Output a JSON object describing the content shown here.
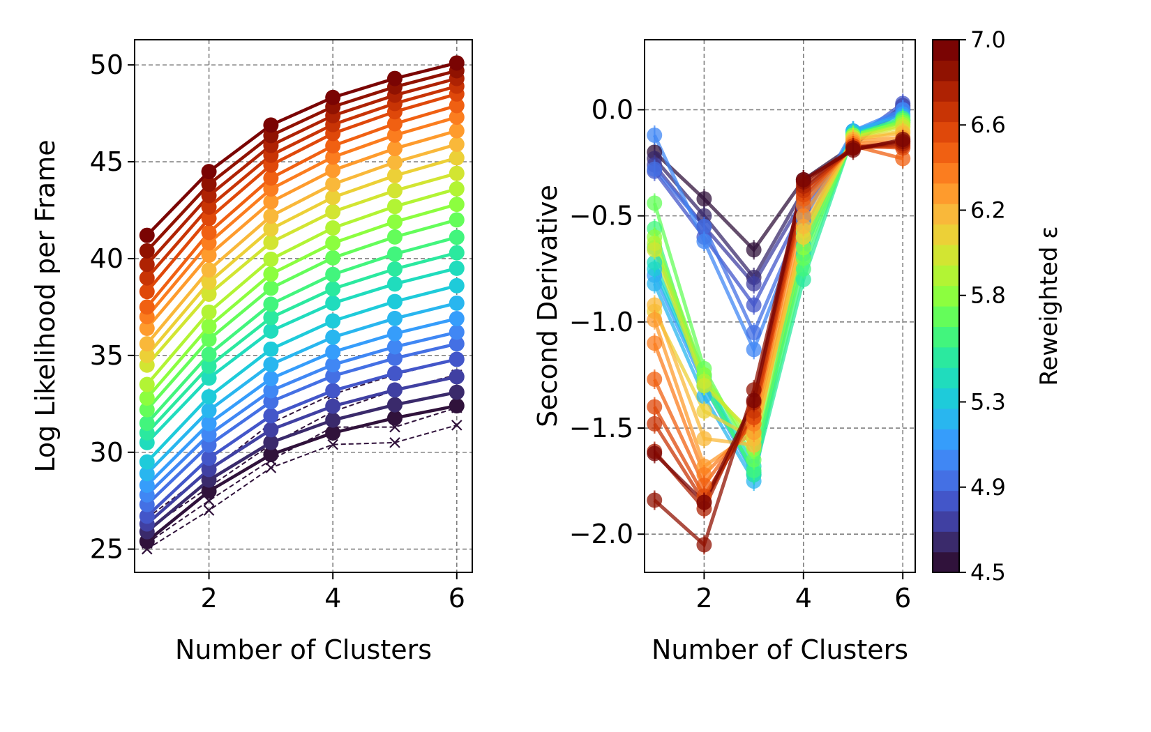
{
  "chart_data": [
    {
      "type": "line",
      "title": "",
      "xlabel": "Number of Clusters",
      "ylabel": "Log Likelihood per Frame",
      "xlim": [
        0.8,
        6.25
      ],
      "ylim": [
        23.8,
        51.3
      ],
      "xticks": [
        2,
        4,
        6
      ],
      "yticks": [
        25,
        30,
        35,
        40,
        45,
        50
      ],
      "grid": true,
      "x": [
        1,
        2,
        3,
        4,
        5,
        6
      ],
      "color_values": [
        4.5,
        4.6,
        4.7,
        4.8,
        4.9,
        5.0,
        5.1,
        5.2,
        5.3,
        5.4,
        5.5,
        5.6,
        5.7,
        5.8,
        5.9,
        6.0,
        6.1,
        6.2,
        6.3,
        6.4,
        6.5,
        6.6,
        6.7,
        6.8,
        6.9,
        7.0
      ],
      "series_start": [
        25.4,
        25.9,
        26.3,
        26.7,
        27.3,
        27.8,
        28.3,
        28.9,
        29.5,
        30.5,
        31.0,
        31.5,
        32.2,
        32.8,
        33.5,
        34.5,
        35.0,
        35.6,
        36.4,
        37.0,
        37.5,
        38.3,
        39.0,
        39.7,
        40.4,
        41.2
      ],
      "series_end": [
        32.4,
        33.1,
        33.9,
        34.8,
        35.6,
        36.2,
        36.9,
        37.7,
        38.6,
        39.5,
        40.3,
        41.1,
        42.0,
        42.8,
        43.6,
        44.4,
        45.2,
        45.9,
        46.6,
        47.3,
        47.9,
        48.5,
        48.9,
        49.3,
        49.7,
        50.1
      ],
      "dashed_series": [
        {
          "values": [
            25.0,
            27.0,
            29.2,
            30.4,
            30.5,
            31.4
          ]
        },
        {
          "values": [
            25.3,
            27.5,
            29.6,
            31.3,
            31.3,
            32.3
          ]
        },
        {
          "values": [
            26.0,
            28.2,
            30.4,
            32.1,
            33.2,
            34.0
          ]
        },
        {
          "values": [
            26.6,
            29.0,
            31.5,
            33.0,
            34.0,
            34.8
          ]
        }
      ]
    },
    {
      "type": "line",
      "title": "",
      "xlabel": "Number of Clusters",
      "ylabel": "Second Derivative",
      "xlim": [
        0.8,
        6.25
      ],
      "ylim": [
        -2.18,
        0.33
      ],
      "xticks": [
        2,
        4,
        6
      ],
      "yticks": [
        0.0,
        -0.5,
        -1.0,
        -1.5,
        -2.0
      ],
      "ytick_labels": [
        "0.0",
        "−0.5",
        "−1.0",
        "−1.5",
        "−2.0"
      ],
      "grid": true,
      "x": [
        1,
        2,
        3,
        4,
        5,
        6
      ],
      "series": [
        {
          "c": 4.5,
          "values": [
            -0.2,
            -0.42,
            -0.66,
            -0.33,
            -0.17,
            0.02
          ]
        },
        {
          "c": 4.6,
          "values": [
            -0.23,
            -0.5,
            -0.79,
            -0.38,
            -0.16,
            0.0
          ]
        },
        {
          "c": 4.7,
          "values": [
            -0.26,
            -0.55,
            -0.82,
            -0.42,
            -0.15,
            0.01
          ]
        },
        {
          "c": 4.8,
          "values": [
            -0.29,
            -0.6,
            -0.92,
            -0.46,
            -0.14,
            0.03
          ]
        },
        {
          "c": 4.9,
          "values": [
            -0.28,
            -0.55,
            -1.05,
            -0.5,
            -0.12,
            0.0
          ]
        },
        {
          "c": 5.0,
          "values": [
            -0.12,
            -0.62,
            -1.13,
            -0.52,
            -0.1,
            0.0
          ]
        },
        {
          "c": 5.1,
          "values": [
            -0.78,
            -1.3,
            -1.72,
            -0.58,
            -0.1,
            -0.02
          ]
        },
        {
          "c": 5.2,
          "values": [
            -0.82,
            -1.35,
            -1.75,
            -0.6,
            -0.1,
            -0.03
          ]
        },
        {
          "c": 5.3,
          "values": [
            -0.75,
            -1.28,
            -1.71,
            -0.64,
            -0.11,
            -0.05
          ]
        },
        {
          "c": 5.4,
          "values": [
            -0.72,
            -1.26,
            -1.68,
            -0.68,
            -0.11,
            -0.06
          ]
        },
        {
          "c": 5.5,
          "values": [
            -0.65,
            -1.25,
            -1.72,
            -0.8,
            -0.12,
            -0.05
          ]
        },
        {
          "c": 5.6,
          "values": [
            -0.56,
            -1.3,
            -1.7,
            -0.75,
            -0.12,
            -0.04
          ]
        },
        {
          "c": 5.7,
          "values": [
            -0.44,
            -1.22,
            -1.65,
            -0.7,
            -0.13,
            -0.05
          ]
        },
        {
          "c": 5.8,
          "values": [
            -0.6,
            -1.25,
            -1.6,
            -0.65,
            -0.12,
            -0.06
          ]
        },
        {
          "c": 5.9,
          "values": [
            -0.63,
            -1.28,
            -1.55,
            -0.6,
            -0.13,
            -0.07
          ]
        },
        {
          "c": 6.0,
          "values": [
            -0.66,
            -1.3,
            -1.53,
            -0.57,
            -0.13,
            -0.08
          ]
        },
        {
          "c": 6.1,
          "values": [
            -0.95,
            -1.42,
            -1.55,
            -0.6,
            -0.14,
            -0.1
          ]
        },
        {
          "c": 6.2,
          "values": [
            -0.92,
            -1.55,
            -1.58,
            -0.55,
            -0.14,
            -0.11
          ]
        },
        {
          "c": 6.3,
          "values": [
            -0.99,
            -1.68,
            -1.52,
            -0.5,
            -0.15,
            -0.13
          ]
        },
        {
          "c": 6.4,
          "values": [
            -1.1,
            -1.72,
            -1.48,
            -0.45,
            -0.16,
            -0.15
          ]
        },
        {
          "c": 6.5,
          "values": [
            -1.27,
            -1.77,
            -1.45,
            -0.42,
            -0.17,
            -0.23
          ]
        },
        {
          "c": 6.6,
          "values": [
            -1.4,
            -1.82,
            -1.45,
            -0.4,
            -0.17,
            -0.18
          ]
        },
        {
          "c": 6.7,
          "values": [
            -1.48,
            -1.85,
            -1.42,
            -0.38,
            -0.18,
            -0.17
          ]
        },
        {
          "c": 6.8,
          "values": [
            -1.61,
            -1.88,
            -1.38,
            -0.36,
            -0.18,
            -0.16
          ]
        },
        {
          "c": 6.9,
          "values": [
            -1.84,
            -2.05,
            -1.32,
            -0.34,
            -0.18,
            -0.15
          ]
        },
        {
          "c": 7.0,
          "values": [
            -1.62,
            -1.85,
            -1.37,
            -0.33,
            -0.19,
            -0.14
          ]
        }
      ]
    }
  ],
  "colorbar": {
    "label": "Reweighted ε",
    "min": 4.5,
    "max": 7.0,
    "ticks": [
      "4.5",
      "4.9",
      "5.3",
      "5.8",
      "6.2",
      "6.6",
      "7.0"
    ],
    "tick_values": [
      4.5,
      4.9,
      5.3,
      5.8,
      6.2,
      6.6,
      7.0
    ],
    "colors": [
      "#30123b",
      "#3a2a6b",
      "#4040a2",
      "#4356c9",
      "#4470e4",
      "#4087f4",
      "#369dfb",
      "#29b6ef",
      "#1ecbda",
      "#20dcbd",
      "#2be99f",
      "#42f57d",
      "#64fd5a",
      "#8cfe3f",
      "#b2f434",
      "#d2e532",
      "#ecd037",
      "#f9b83a",
      "#fe9b2d",
      "#fb7d1f",
      "#f06012",
      "#df480a",
      "#c83405",
      "#ae2203",
      "#901201",
      "#7a0403"
    ]
  }
}
